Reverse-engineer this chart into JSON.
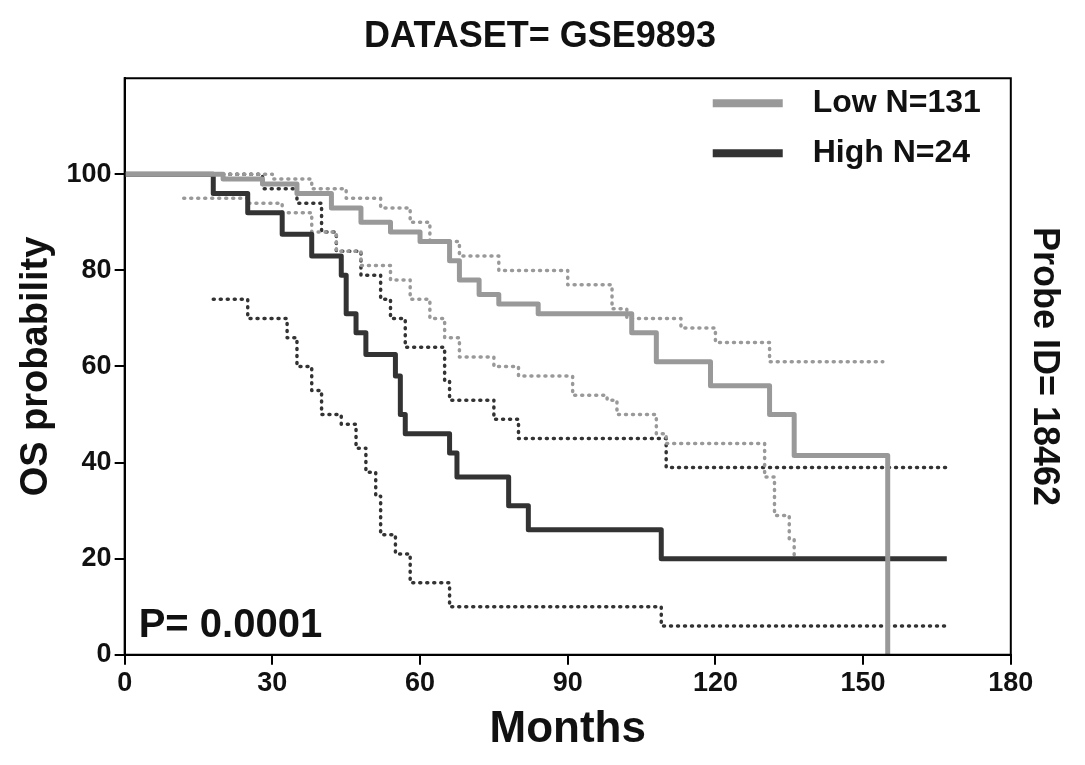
{
  "chart_data": {
    "type": "step",
    "title": "DATASET= GSE9893",
    "xlabel": "Months",
    "ylabel": "OS probability",
    "y2label": "Probe ID= 18462",
    "xlim": [
      0,
      180
    ],
    "xticks": [
      0,
      30,
      60,
      90,
      120,
      150,
      180
    ],
    "ylim": [
      0,
      120
    ],
    "yticks": [
      0,
      20,
      40,
      60,
      80,
      100
    ],
    "legend": "top right",
    "grid": false,
    "annotations": [
      "P= 0.0001"
    ],
    "series": [
      {
        "name": "Low N=131",
        "color": "#999999",
        "x": [
          0,
          12,
          20,
          28,
          35,
          42,
          48,
          54,
          60,
          66,
          68,
          72,
          76,
          84,
          99,
          103,
          108,
          119,
          131,
          136,
          155
        ],
        "values": [
          100,
          100,
          99,
          98,
          96,
          93,
          90,
          88,
          86,
          82,
          78,
          75,
          73,
          71,
          71,
          67,
          61,
          56,
          50,
          41.5,
          0
        ]
      },
      {
        "name": "High N=24",
        "color": "#333333",
        "x": [
          0,
          18,
          25,
          32,
          38,
          44,
          45,
          47,
          49,
          55,
          56,
          57,
          66,
          67.5,
          78,
          82,
          109,
          167
        ],
        "values": [
          100,
          96,
          92,
          87.5,
          83,
          79,
          71,
          67,
          62.5,
          58,
          50,
          46,
          42,
          37,
          31,
          26,
          20,
          20
        ]
      },
      {
        "color": "#999999",
        "line_style": "dotted",
        "x": [
          0,
          25,
          30,
          38,
          45,
          52,
          58,
          62,
          68,
          76,
          88,
          90,
          98,
          99,
          102,
          110,
          113,
          120,
          128,
          131,
          154
        ],
        "values": [
          100,
          100,
          99,
          97,
          95,
          93,
          90,
          86,
          83,
          80,
          80,
          77,
          77,
          72,
          70,
          70,
          68,
          65,
          65,
          61,
          61
        ]
      },
      {
        "color": "#999999",
        "line_style": "dotted",
        "x": [
          12,
          25,
          32,
          38,
          43,
          48,
          54,
          58,
          62,
          65,
          68,
          75,
          80,
          90,
          91,
          98,
          100,
          108,
          110,
          127,
          130,
          132,
          135,
          136,
          147
        ],
        "values": [
          95,
          94,
          92,
          88,
          84,
          81,
          78,
          74,
          70,
          66,
          62,
          60,
          58,
          58,
          54,
          53,
          50,
          46,
          44,
          44,
          37,
          29,
          24,
          20,
          20
        ]
      },
      {
        "color": "#333333",
        "line_style": "dotted",
        "x": [
          0,
          28,
          35,
          40,
          43,
          48,
          52,
          54,
          57,
          64,
          65,
          66,
          74,
          75,
          80,
          108,
          110,
          167
        ],
        "values": [
          100,
          97,
          94,
          88,
          84,
          79,
          74,
          70,
          64,
          64,
          57,
          53,
          53,
          49,
          45,
          45,
          39,
          39
        ]
      },
      {
        "color": "#333333",
        "line_style": "dotted",
        "x": [
          18,
          24,
          25,
          32,
          33,
          35,
          38,
          40,
          44,
          47,
          49,
          51,
          52,
          55,
          58,
          66,
          108,
          109,
          167
        ],
        "values": [
          74,
          74,
          70,
          70,
          66,
          60,
          55,
          50,
          48,
          43,
          38,
          33,
          25,
          21,
          15,
          10,
          10,
          6,
          6
        ]
      }
    ]
  }
}
